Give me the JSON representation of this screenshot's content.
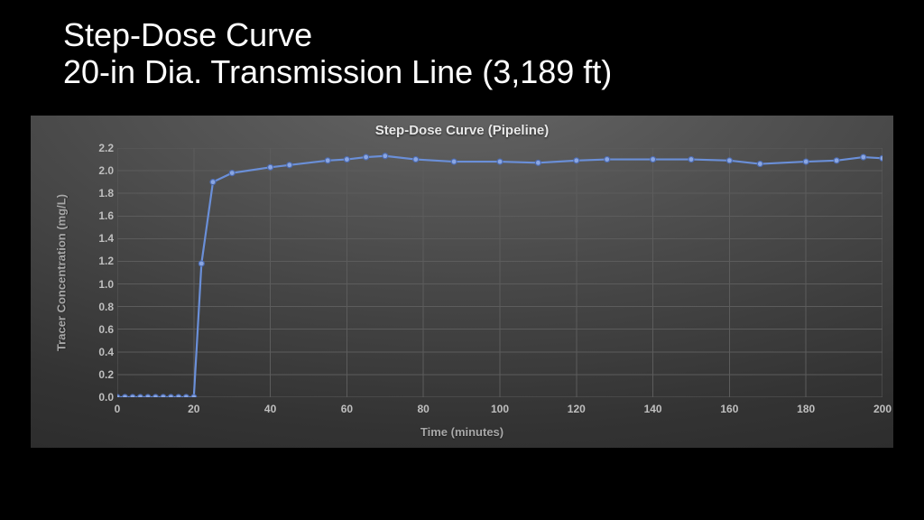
{
  "slide": {
    "title_line1": "Step-Dose Curve",
    "title_line2": "20-in Dia. Transmission Line (3,189 ft)",
    "title_fontsize": 36,
    "title_color": "#ffffff",
    "background_color": "#000000"
  },
  "chart": {
    "type": "line",
    "title": "Step-Dose Curve (Pipeline)",
    "title_fontsize": 15,
    "title_color": "#e8e8e8",
    "card_gradient_top": "#666666",
    "card_gradient_bottom": "#222222",
    "grid_color": "#5c5c5c",
    "xlabel": "Time (minutes)",
    "ylabel": "Tracer Concentration (mg/L)",
    "label_fontsize": 13,
    "label_color": "#a8a8a8",
    "tick_color": "#bfbfbf",
    "tick_fontsize": 12,
    "xlim": [
      0,
      200
    ],
    "ylim": [
      0.0,
      2.2
    ],
    "xticks": [
      0,
      20,
      40,
      60,
      80,
      100,
      120,
      140,
      160,
      180,
      200
    ],
    "yticks": [
      0.0,
      0.2,
      0.4,
      0.6,
      0.8,
      1.0,
      1.2,
      1.4,
      1.6,
      1.8,
      2.0,
      2.2
    ],
    "series": {
      "color": "#6a8fd8",
      "marker_fill": "#8aa6e2",
      "marker_stroke": "#4c6bb0",
      "marker_radius": 3.0,
      "line_width": 2.2,
      "x": [
        0,
        2,
        4,
        6,
        8,
        10,
        12,
        14,
        16,
        18,
        20,
        22,
        25,
        30,
        40,
        45,
        55,
        60,
        65,
        70,
        78,
        88,
        100,
        110,
        120,
        128,
        140,
        150,
        160,
        168,
        180,
        188,
        195,
        200
      ],
      "y": [
        0,
        0,
        0,
        0,
        0,
        0,
        0,
        0,
        0,
        0,
        0,
        1.18,
        1.9,
        1.98,
        2.03,
        2.05,
        2.09,
        2.1,
        2.12,
        2.13,
        2.1,
        2.08,
        2.08,
        2.07,
        2.09,
        2.1,
        2.1,
        2.1,
        2.09,
        2.06,
        2.08,
        2.09,
        2.12,
        2.11
      ]
    }
  }
}
